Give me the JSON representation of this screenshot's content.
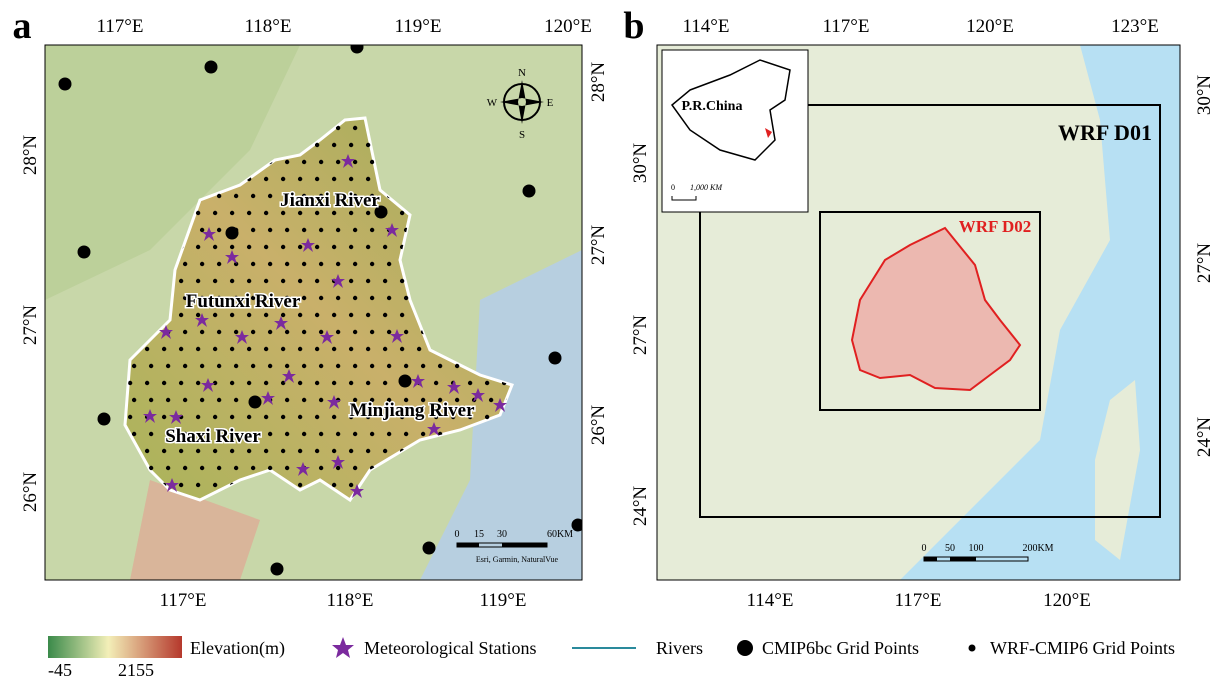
{
  "panel_a": {
    "label": "a",
    "top_ticks": [
      "117°E",
      "118°E",
      "119°E",
      "120°E"
    ],
    "bottom_ticks": [
      "117°E",
      "118°E",
      "119°E"
    ],
    "left_ticks": [
      "28°N",
      "27°N",
      "26°N"
    ],
    "right_ticks": [
      "28°N",
      "27°N",
      "26°N"
    ],
    "rivers": [
      "Jianxi River",
      "Futunxi River",
      "Minjiang River",
      "Shaxi River"
    ],
    "compass": [
      "N",
      "E",
      "S",
      "W"
    ],
    "scale": [
      "0",
      "15",
      "30",
      "60KM"
    ],
    "attribution": "Esri, Garmin, NaturalVue"
  },
  "panel_b": {
    "label": "b",
    "top_ticks": [
      "114°E",
      "117°E",
      "120°E",
      "123°E"
    ],
    "bottom_ticks": [
      "114°E",
      "117°E",
      "120°E"
    ],
    "left_ticks": [
      "30°N",
      "27°N",
      "24°N"
    ],
    "right_ticks": [
      "30°N",
      "27°N",
      "24°N"
    ],
    "domains": [
      "WRF D01",
      "WRF D02"
    ],
    "inset": {
      "title": "P.R.China",
      "scale": [
        "0",
        "1,000 KM"
      ]
    },
    "scale": [
      "0",
      "50",
      "100",
      "200KM"
    ]
  },
  "legend": {
    "elevation": "Elevation(m)",
    "elevation_min": "-45",
    "elevation_max": "2155",
    "items": [
      "Meteorological Stations",
      "Rivers",
      "CMIP6bc Grid Points",
      "WRF-CMIP6 Grid Points"
    ]
  }
}
